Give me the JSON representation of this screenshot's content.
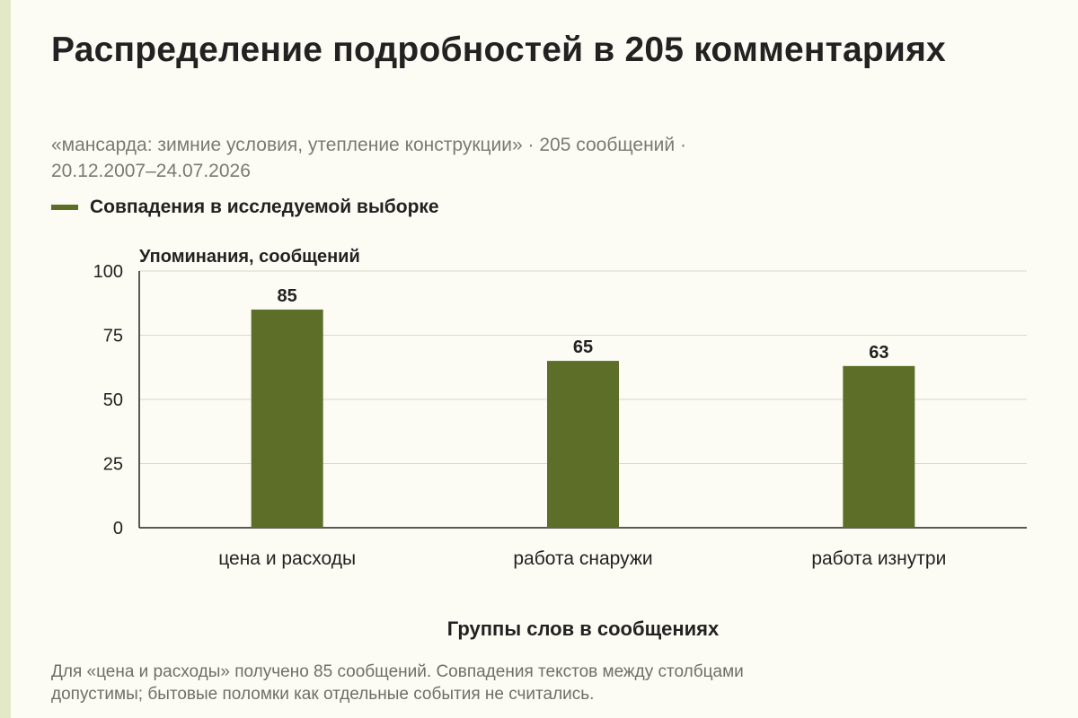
{
  "title": "Распределение подробностей в 205 комментариях",
  "subtitle_line1": "«мансарда: зимние условия, утепление конструкции» · 205 сообщений ·",
  "subtitle_line2": "20.12.2007–24.07.2026",
  "legend_label": "Совпадения в исследуемой выборке",
  "note_line1": "Для «цена и расходы» получено 85 сообщений. Совпадения текстов между столбцами",
  "note_line2": "допустимы; бытовые поломки как отдельные события не считались.",
  "colors": {
    "bar": "#5c6e27",
    "grid": "#d9d9d0",
    "axis": "#222222"
  },
  "chart_data": {
    "type": "bar",
    "categories": [
      "цена и расходы",
      "работа снаружи",
      "работа изнутри"
    ],
    "series": [
      {
        "name": "Совпадения в исследуемой выборке",
        "values": [
          85,
          65,
          63
        ]
      }
    ],
    "xlabel": "Группы слов в сообщениях",
    "ylabel": "Упоминания, сообщений",
    "ylim": [
      0,
      100
    ],
    "yticks": [
      0,
      25,
      50,
      75,
      100
    ],
    "grid": true,
    "data_labels": true,
    "legend_position": "top-left"
  }
}
